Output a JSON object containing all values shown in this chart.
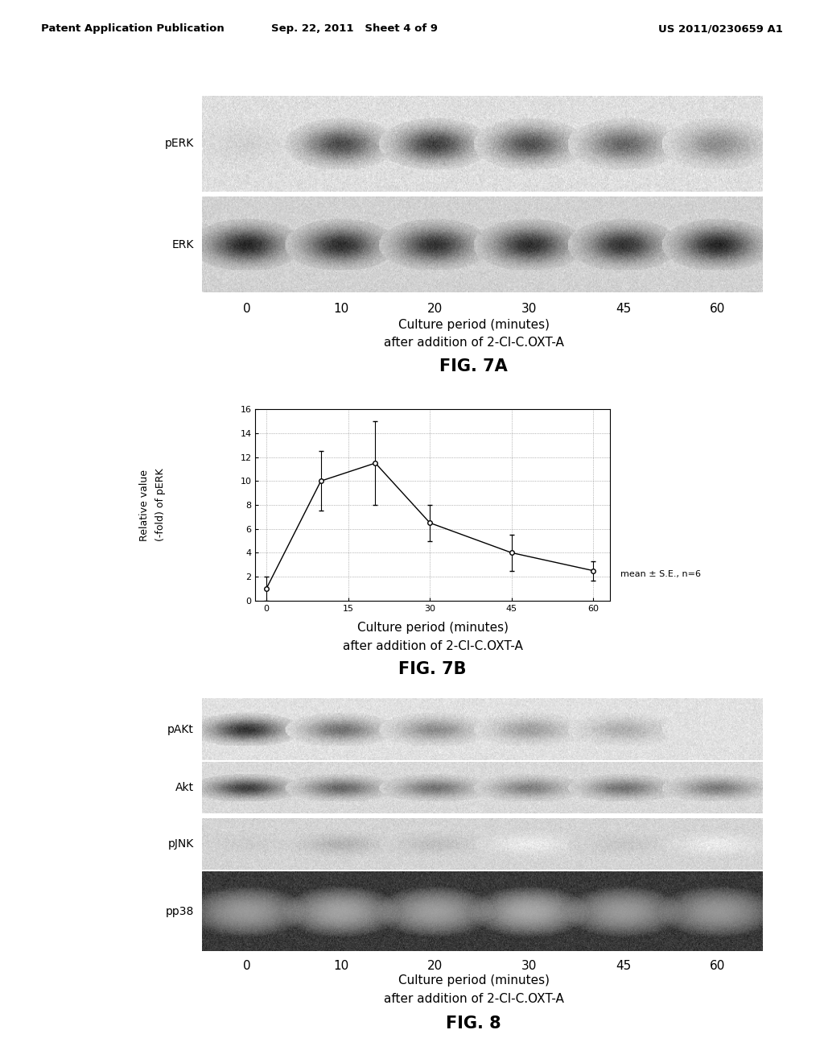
{
  "header_left": "Patent Application Publication",
  "header_center": "Sep. 22, 2011   Sheet 4 of 9",
  "header_right": "US 2011/0230659 A1",
  "fig7a_label": "FIG. 7A",
  "fig7b_label": "FIG. 7B",
  "fig8_label": "FIG. 8",
  "time_points": [
    "0",
    "10",
    "20",
    "30",
    "45",
    "60"
  ],
  "xlabel_line1": "Culture period (minutes)",
  "xlabel_line2": "after addition of 2-Cl-C.OXT-A",
  "fig7b_ylabel_line1": "Relative value",
  "fig7b_ylabel_line2": "(-fold) of pERK",
  "fig7b_yticks": [
    0,
    2,
    4,
    6,
    8,
    10,
    12,
    14,
    16
  ],
  "fig7b_xticks": [
    0,
    15,
    30,
    45,
    60
  ],
  "fig7b_data_x": [
    0,
    10,
    20,
    30,
    45,
    60
  ],
  "fig7b_data_y": [
    1.0,
    10.0,
    11.5,
    6.5,
    4.0,
    2.5
  ],
  "fig7b_error": [
    1.0,
    2.5,
    3.5,
    1.5,
    1.5,
    0.8
  ],
  "fig7b_annotation": "mean ± S.E., n=6",
  "bg_color": "#ffffff",
  "text_color": "#000000",
  "fig7a_pERK_intensities": [
    0.18,
    0.7,
    0.75,
    0.68,
    0.6,
    0.45
  ],
  "fig7a_ERK_intensities": [
    0.85,
    0.82,
    0.8,
    0.82,
    0.8,
    0.85
  ],
  "fig8_pAKt_intensities": [
    0.8,
    0.55,
    0.45,
    0.38,
    0.32,
    0.12
  ],
  "fig8_Akt_intensities": [
    0.75,
    0.6,
    0.55,
    0.5,
    0.55,
    0.52
  ],
  "fig8_pJNK_intensities": [
    0.2,
    0.3,
    0.25,
    0.08,
    0.22,
    0.08
  ],
  "fig8_pp38_intensities": [
    0.65,
    0.8,
    0.72,
    0.88,
    0.65,
    0.6
  ]
}
